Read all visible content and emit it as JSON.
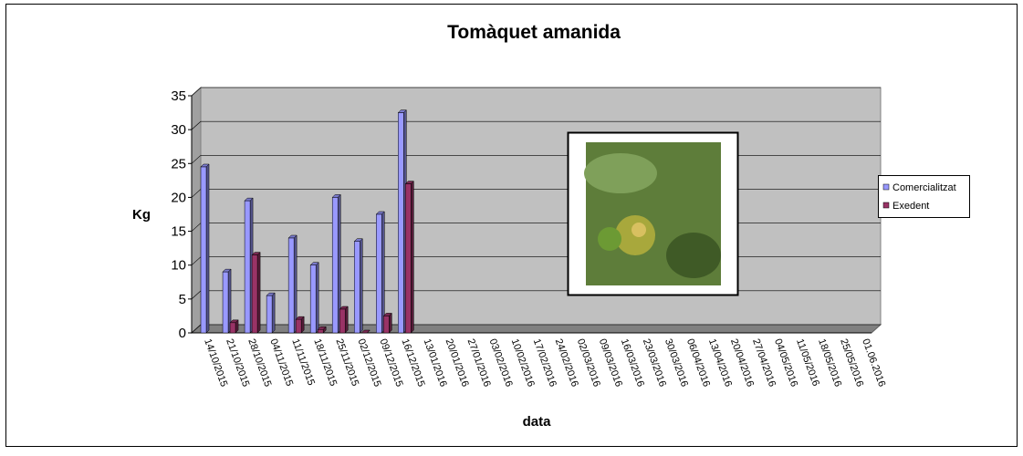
{
  "chart_data": {
    "type": "bar",
    "title": "Tomàquet amanida",
    "x_label": "data",
    "y_label": "Kg",
    "categories": [
      "14/10/2015",
      "21/10/2015",
      "28/10/2015",
      "04/11/2015",
      "11/11/2015",
      "18/11/2015",
      "25/11/2015",
      "02/12/2015",
      "09/12/2015",
      "16/12/2015",
      "13/01/2016",
      "20/01/2016",
      "27/01/2016",
      "03/02/2016",
      "10/02/2016",
      "17/02/2016",
      "24/02/2016",
      "02/03/2016",
      "09/03/2016",
      "16/03/2016",
      "23/03/2016",
      "30/03/2016",
      "06/04/2016",
      "13/04/2016",
      "20/04/2016",
      "27/04/2016",
      "04/05/2016",
      "11/05/2016",
      "18/05/2016",
      "25/05/2016",
      "01.06.2016"
    ],
    "series": [
      {
        "name": "Comercialitzat",
        "color": "#9999ff",
        "values": [
          24.5,
          9,
          19.5,
          5.5,
          14,
          10,
          20,
          13.5,
          17.5,
          32.5,
          null,
          null,
          null,
          null,
          null,
          null,
          null,
          null,
          null,
          null,
          null,
          null,
          null,
          null,
          null,
          null,
          null,
          null,
          null,
          null,
          null
        ]
      },
      {
        "name": "Exedent",
        "color": "#993366",
        "values": [
          null,
          1.5,
          11.5,
          null,
          2,
          0.5,
          3.5,
          0,
          2.5,
          22,
          null,
          null,
          null,
          null,
          null,
          null,
          null,
          null,
          null,
          null,
          null,
          null,
          null,
          null,
          null,
          null,
          null,
          null,
          null,
          null,
          null
        ]
      }
    ],
    "ylim": [
      0,
      35
    ],
    "yticks": [
      0,
      5,
      10,
      15,
      20,
      25,
      30,
      35
    ],
    "grid": true,
    "legend": "right"
  }
}
